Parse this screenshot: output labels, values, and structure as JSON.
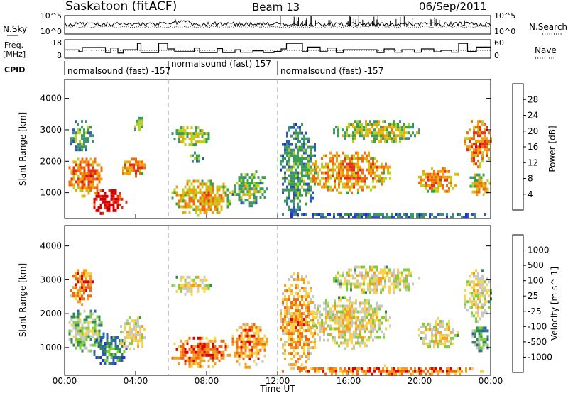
{
  "header": {
    "station": "Saskatoon (fitACF)",
    "beam": "Beam 13",
    "date": "06/Sep/2011"
  },
  "left_labels": {
    "nsky": "N.Sky",
    "freq_line1": "Freq.",
    "freq_line2": "[MHz]",
    "cpid": "CPID"
  },
  "right_labels": {
    "nsearch": "N.Search",
    "nave": "Nave"
  },
  "cpid_segments": [
    {
      "label": "normalsound (fast) -157",
      "start_hour": 0.0
    },
    {
      "label": "normalsound (fast) 157",
      "start_hour": 5.8
    },
    {
      "label": "normalsound (fast) -157",
      "start_hour": 12.0
    }
  ],
  "colors": {
    "power_scale": [
      "#1f2fd6",
      "#2e55b8",
      "#3f8f7a",
      "#37a24a",
      "#b9d11e",
      "#f0a20a",
      "#f06b10",
      "#e3301a",
      "#d40000"
    ],
    "velocity_scale": [
      "#2a35c8",
      "#2f60b0",
      "#2f8a5a",
      "#7fce3a",
      "#c8c8c0",
      "#f7d44a",
      "#f2a020",
      "#f06a10",
      "#e00000"
    ]
  },
  "chart_data": [
    {
      "type": "line",
      "name": "sky-noise",
      "ytick_labels": [
        "10^5",
        "10^0"
      ],
      "right_ytick_labels": [
        "10^5",
        "10^0"
      ]
    },
    {
      "type": "line",
      "name": "frequency-nave",
      "ytick_labels": [
        "18",
        "8"
      ],
      "right_ytick_labels": [
        "60",
        "0"
      ],
      "x_hours": [
        0,
        0.8,
        1.0,
        2.3,
        2.6,
        3.0,
        3.3,
        4.1,
        4.3,
        5.3,
        5.8,
        6.2,
        7.3,
        7.6,
        8.6,
        8.9,
        9.6,
        9.9,
        10.6,
        11.2,
        11.8,
        12.2,
        12.5,
        13.4,
        13.7,
        14.4,
        14.8,
        15.3,
        15.7,
        17.6,
        18.0,
        18.6,
        19.0,
        19.7,
        20.1,
        20.8,
        21.2,
        21.8,
        22.2,
        22.7,
        23.2,
        24.0
      ],
      "freq_mhz": [
        12.5,
        11.5,
        13.8,
        11.0,
        13.5,
        10.8,
        12.6,
        16.0,
        11.0,
        16.0,
        13.0,
        11.5,
        13.5,
        11.0,
        13.2,
        11.0,
        12.6,
        11.2,
        12.0,
        11.0,
        11.6,
        13.0,
        16.0,
        11.5,
        14.0,
        11.5,
        13.5,
        11.0,
        12.6,
        11.0,
        13.0,
        11.2,
        12.6,
        11.2,
        13.0,
        11.4,
        12.2,
        11.2,
        16.0,
        11.6,
        14.0,
        12.0
      ]
    },
    {
      "type": "heatmap",
      "name": "power",
      "ylabel": "Slant Range [km]",
      "xlabel": "Time UT",
      "x_ticks": [
        "00:00",
        "04:00",
        "08:00",
        "12:00",
        "16:00",
        "20:00",
        "00:00"
      ],
      "xlim_hours": [
        0,
        24
      ],
      "y_ticks": [
        1000,
        2000,
        3000,
        4000
      ],
      "ylim_km": [
        180,
        4600
      ],
      "colorbar_label": "Power [dB]",
      "colorbar_ticks": [
        "4",
        "8",
        "12",
        "16",
        "20",
        "24",
        "28"
      ],
      "blobs": [
        {
          "t0": 0.1,
          "t1": 2.2,
          "r0": 900,
          "r1": 2200,
          "level": 0.6
        },
        {
          "t0": 1.5,
          "t1": 3.5,
          "r0": 300,
          "r1": 1200,
          "level": 0.85
        },
        {
          "t0": 0.2,
          "t1": 1.6,
          "r0": 2300,
          "r1": 3400,
          "level": 0.25
        },
        {
          "t0": 3.0,
          "t1": 4.6,
          "r0": 1500,
          "r1": 2200,
          "level": 0.55
        },
        {
          "t0": 3.8,
          "t1": 4.4,
          "r0": 2900,
          "r1": 3500,
          "level": 0.3
        },
        {
          "t0": 5.9,
          "t1": 8.2,
          "r0": 2500,
          "r1": 3200,
          "level": 0.35
        },
        {
          "t0": 5.9,
          "t1": 9.4,
          "r0": 300,
          "r1": 1500,
          "level": 0.5
        },
        {
          "t0": 6.8,
          "t1": 7.8,
          "r0": 2000,
          "r1": 2400,
          "level": 0.3
        },
        {
          "t0": 9.3,
          "t1": 11.4,
          "r0": 600,
          "r1": 1800,
          "level": 0.3
        },
        {
          "t0": 12.0,
          "t1": 14.2,
          "r0": 300,
          "r1": 3300,
          "level": 0.22
        },
        {
          "t0": 13.6,
          "t1": 18.4,
          "r0": 1000,
          "r1": 2400,
          "level": 0.55
        },
        {
          "t0": 15.0,
          "t1": 20.0,
          "r0": 2600,
          "r1": 3400,
          "level": 0.38
        },
        {
          "t0": 19.8,
          "t1": 22.2,
          "r0": 1000,
          "r1": 1900,
          "level": 0.55
        },
        {
          "t0": 22.4,
          "t1": 24.0,
          "r0": 1800,
          "r1": 3400,
          "level": 0.6
        },
        {
          "t0": 22.7,
          "t1": 24.0,
          "r0": 900,
          "r1": 1700,
          "level": 0.45
        },
        {
          "t0": 12.0,
          "t1": 24.0,
          "r0": 200,
          "r1": 450,
          "level": 0.12
        }
      ]
    },
    {
      "type": "heatmap",
      "name": "velocity",
      "ylabel": "Slant Range [km]",
      "xlabel": "Time UT",
      "x_ticks": [
        "00:00",
        "04:00",
        "08:00",
        "12:00",
        "16:00",
        "20:00",
        "00:00"
      ],
      "xlim_hours": [
        0,
        24
      ],
      "y_ticks": [
        1000,
        2000,
        3000,
        4000
      ],
      "ylim_km": [
        180,
        4600
      ],
      "colorbar_label": "Velocity [m s^-1]",
      "colorbar_ticks": [
        "1000",
        "500",
        "100",
        "25",
        "-25",
        "-100",
        "-500",
        "-1000"
      ],
      "blobs": [
        {
          "t0": 0.1,
          "t1": 2.2,
          "r0": 900,
          "r1": 2200,
          "level": 0.35
        },
        {
          "t0": 1.5,
          "t1": 3.5,
          "r0": 500,
          "r1": 1500,
          "level": 0.15
        },
        {
          "t0": 0.2,
          "t1": 1.6,
          "r0": 2300,
          "r1": 3400,
          "level": 0.7
        },
        {
          "t0": 3.0,
          "t1": 4.6,
          "r0": 900,
          "r1": 2000,
          "level": 0.45
        },
        {
          "t0": 5.9,
          "t1": 8.2,
          "r0": 2600,
          "r1": 3200,
          "level": 0.45
        },
        {
          "t0": 5.9,
          "t1": 9.4,
          "r0": 400,
          "r1": 1400,
          "level": 0.7
        },
        {
          "t0": 9.3,
          "t1": 11.4,
          "r0": 400,
          "r1": 1800,
          "level": 0.65
        },
        {
          "t0": 12.0,
          "t1": 14.2,
          "r0": 300,
          "r1": 3300,
          "level": 0.6
        },
        {
          "t0": 13.6,
          "t1": 18.4,
          "r0": 1000,
          "r1": 2600,
          "level": 0.45
        },
        {
          "t0": 15.0,
          "t1": 20.0,
          "r0": 2600,
          "r1": 3500,
          "level": 0.45
        },
        {
          "t0": 19.8,
          "t1": 22.2,
          "r0": 1000,
          "r1": 1900,
          "level": 0.45
        },
        {
          "t0": 22.4,
          "t1": 24.0,
          "r0": 1800,
          "r1": 3400,
          "level": 0.45
        },
        {
          "t0": 22.7,
          "t1": 24.0,
          "r0": 900,
          "r1": 1700,
          "level": 0.25
        },
        {
          "t0": 12.0,
          "t1": 24.0,
          "r0": 200,
          "r1": 500,
          "level": 0.7
        }
      ]
    }
  ]
}
